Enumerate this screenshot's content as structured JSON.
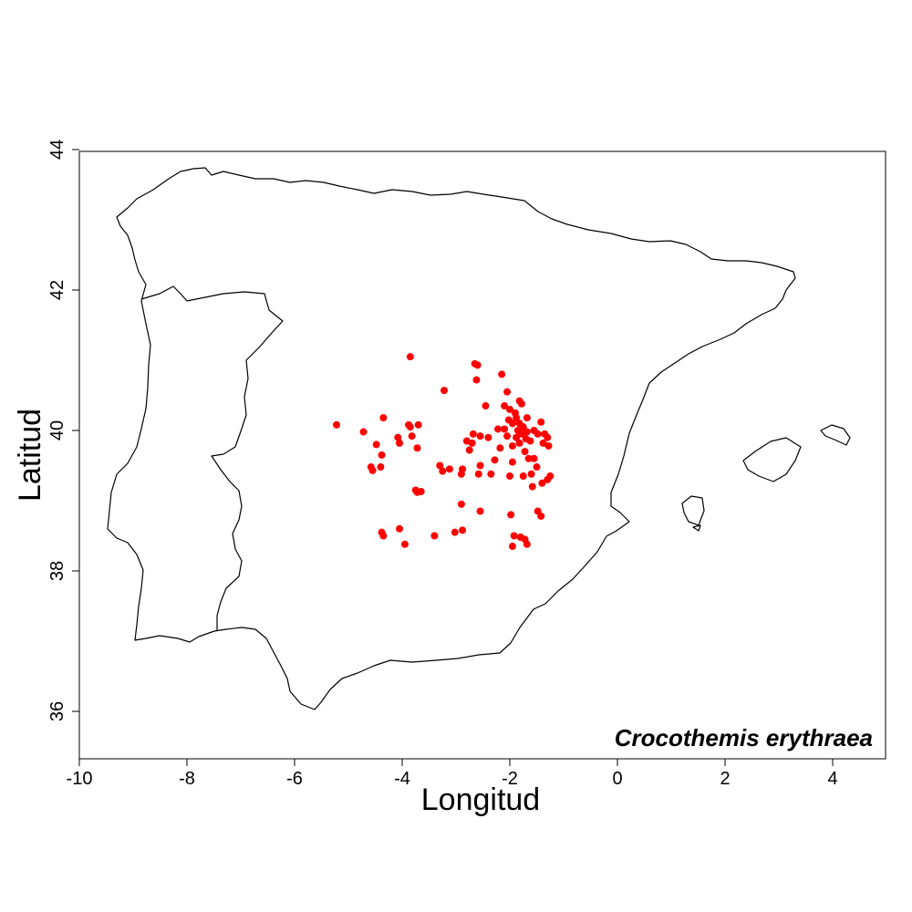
{
  "chart_data": {
    "type": "scatter",
    "title": "",
    "species_label": "Crocothemis erythraea",
    "xlabel": "Longitud",
    "ylabel": "Latitud",
    "xlim": [
      -10,
      5
    ],
    "ylim": [
      35.3,
      44
    ],
    "x_ticks": [
      -10,
      -8,
      -6,
      -4,
      -2,
      0,
      2,
      4
    ],
    "y_ticks": [
      36,
      38,
      40,
      42,
      44
    ],
    "point_color": "#ff0000",
    "grid": false,
    "points": [
      [
        -5.22,
        40.08
      ],
      [
        -4.72,
        39.98
      ],
      [
        -4.48,
        39.8
      ],
      [
        -4.35,
        40.18
      ],
      [
        -4.38,
        39.65
      ],
      [
        -4.58,
        39.48
      ],
      [
        -4.55,
        39.43
      ],
      [
        -3.88,
        40.08
      ],
      [
        -3.85,
        40.05
      ],
      [
        -3.7,
        40.08
      ],
      [
        -4.08,
        39.9
      ],
      [
        -4.05,
        39.82
      ],
      [
        -3.82,
        39.92
      ],
      [
        -3.72,
        39.75
      ],
      [
        -3.85,
        41.05
      ],
      [
        -3.22,
        40.57
      ],
      [
        -3.3,
        39.5
      ],
      [
        -3.25,
        39.42
      ],
      [
        -3.12,
        39.45
      ],
      [
        -3.72,
        39.12
      ],
      [
        -3.65,
        39.13
      ],
      [
        -2.9,
        39.38
      ],
      [
        -2.88,
        39.45
      ],
      [
        -2.8,
        39.85
      ],
      [
        -2.75,
        39.72
      ],
      [
        -2.68,
        39.95
      ],
      [
        -2.55,
        39.92
      ],
      [
        -2.65,
        40.95
      ],
      [
        -2.6,
        40.93
      ],
      [
        -2.62,
        40.72
      ],
      [
        -2.58,
        39.38
      ],
      [
        -2.35,
        39.38
      ],
      [
        -2.28,
        39.58
      ],
      [
        -2.18,
        39.75
      ],
      [
        -2.1,
        40.02
      ],
      [
        -2.15,
        40.8
      ],
      [
        -2.05,
        40.55
      ],
      [
        -2.0,
        40.3
      ],
      [
        -1.95,
        40.1
      ],
      [
        -1.9,
        40.25
      ],
      [
        -1.88,
        39.9
      ],
      [
        -1.85,
        40.0
      ],
      [
        -1.82,
        39.82
      ],
      [
        -1.78,
        39.95
      ],
      [
        -1.75,
        40.05
      ],
      [
        -1.72,
        39.7
      ],
      [
        -1.68,
        39.98
      ],
      [
        -1.62,
        39.85
      ],
      [
        -1.55,
        39.6
      ],
      [
        -1.5,
        39.48
      ],
      [
        -1.48,
        39.95
      ],
      [
        -1.42,
        40.12
      ],
      [
        -1.38,
        39.82
      ],
      [
        -1.3,
        39.9
      ],
      [
        -1.28,
        39.78
      ],
      [
        -1.25,
        39.35
      ],
      [
        -1.3,
        39.3
      ],
      [
        -1.82,
        40.42
      ],
      [
        -1.78,
        40.38
      ],
      [
        -1.95,
        39.55
      ],
      [
        -2.0,
        39.35
      ],
      [
        -1.75,
        39.35
      ],
      [
        -1.6,
        39.38
      ],
      [
        -1.58,
        39.2
      ],
      [
        -1.4,
        39.25
      ],
      [
        -1.48,
        38.85
      ],
      [
        -1.42,
        38.78
      ],
      [
        -1.92,
        38.5
      ],
      [
        -1.8,
        38.48
      ],
      [
        -1.72,
        38.45
      ],
      [
        -1.68,
        38.38
      ],
      [
        -1.95,
        38.35
      ],
      [
        -1.98,
        38.8
      ],
      [
        -2.55,
        38.85
      ],
      [
        -2.9,
        38.95
      ],
      [
        -2.88,
        38.58
      ],
      [
        -3.02,
        38.55
      ],
      [
        -3.4,
        38.5
      ],
      [
        -4.05,
        38.6
      ],
      [
        -4.38,
        38.55
      ],
      [
        -4.35,
        38.5
      ],
      [
        -3.95,
        38.38
      ],
      [
        -2.02,
        40.15
      ],
      [
        -1.88,
        40.18
      ],
      [
        -1.7,
        39.88
      ],
      [
        -1.55,
        40.0
      ],
      [
        -2.22,
        40.02
      ],
      [
        -2.05,
        39.92
      ],
      [
        -1.95,
        39.78
      ],
      [
        -2.4,
        39.9
      ],
      [
        -2.7,
        39.82
      ],
      [
        -2.55,
        39.5
      ],
      [
        -1.65,
        39.6
      ],
      [
        -1.35,
        39.95
      ],
      [
        -2.45,
        40.35
      ],
      [
        -3.75,
        39.15
      ],
      [
        -4.4,
        39.48
      ],
      [
        -1.82,
        40.1
      ],
      [
        -1.68,
        40.18
      ],
      [
        -2.1,
        40.35
      ]
    ]
  }
}
